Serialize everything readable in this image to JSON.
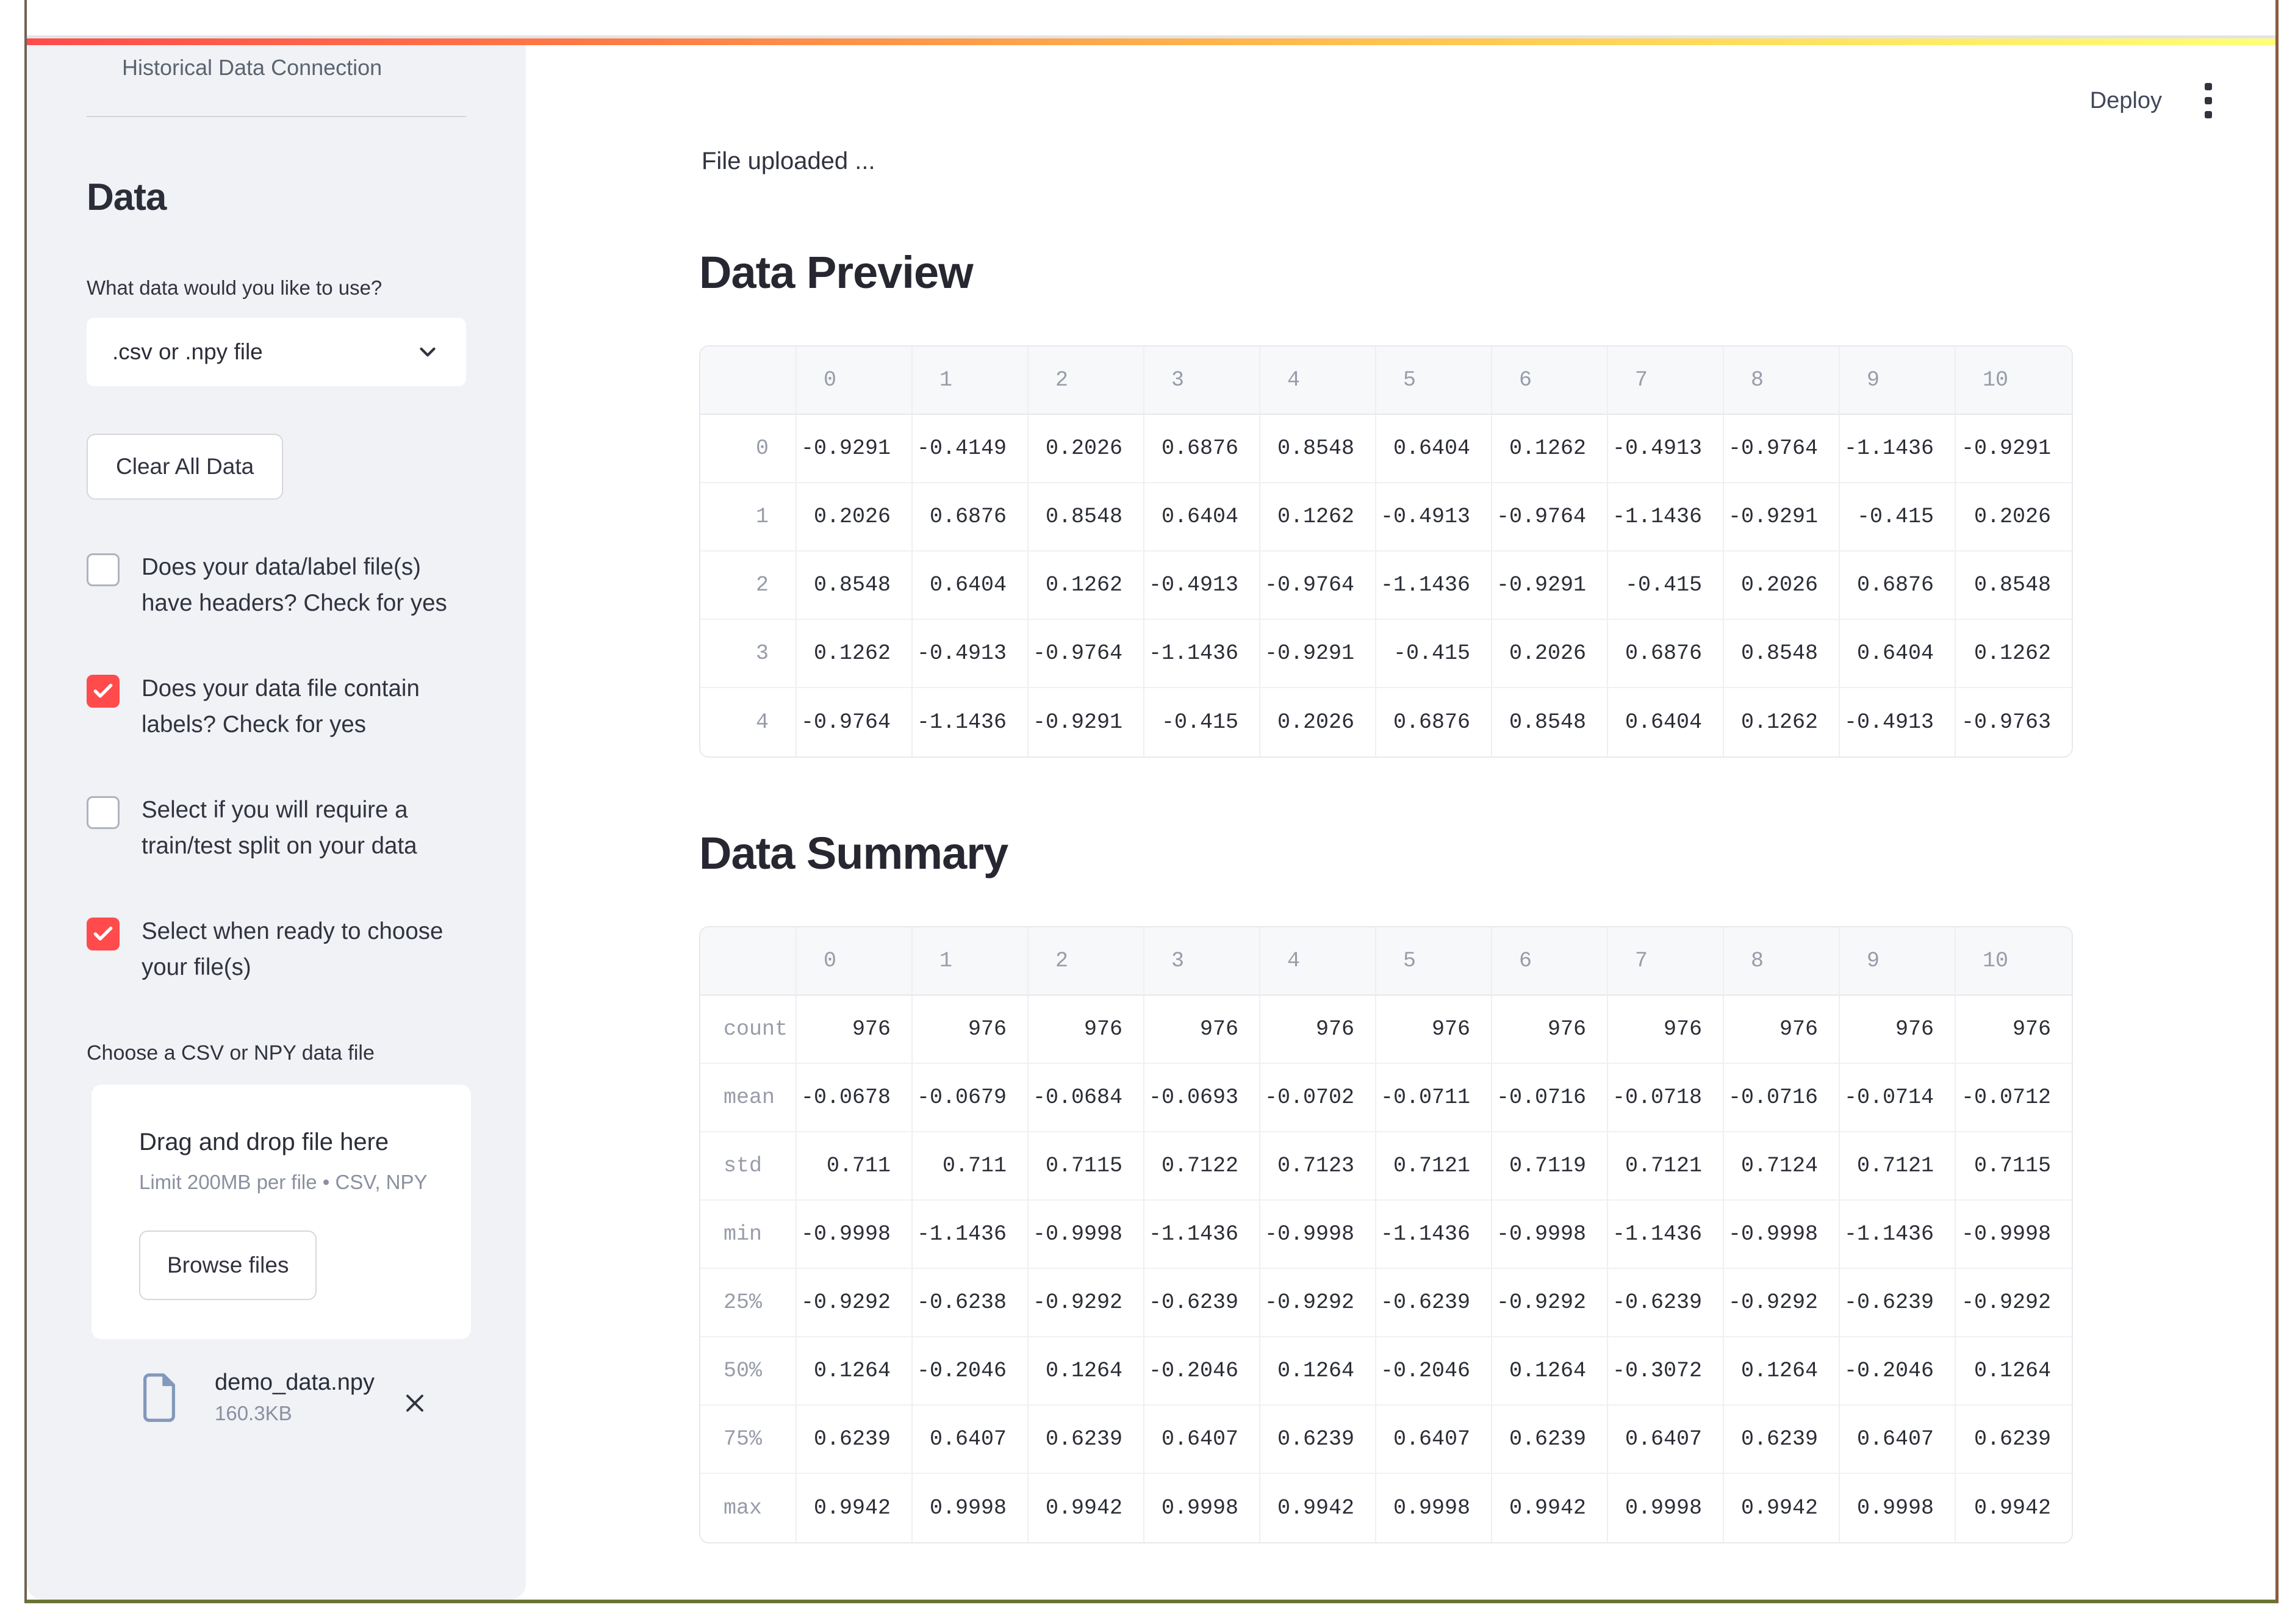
{
  "colors": {
    "accent": "#ff4b4b",
    "decoration_gradient": [
      "#ff4b4b",
      "#ffb84d",
      "#ffff78"
    ],
    "sidebar_bg": "#f0f2f6",
    "file_icon": "#8398ba"
  },
  "header": {
    "deploy_label": "Deploy",
    "menu_icon": "kebab-vertical-icon"
  },
  "sidebar": {
    "app_title": "Historical Data Connection",
    "section_title": "Data",
    "select_label": "What data would you like to use?",
    "select_value": ".csv or .npy file",
    "clear_button": "Clear All Data",
    "checkboxes": [
      {
        "label": "Does your data/label file(s) have headers? Check for yes",
        "checked": false
      },
      {
        "label": "Does your data file contain labels? Check for yes",
        "checked": true
      },
      {
        "label": "Select if you will require a train/test split on your data",
        "checked": false
      },
      {
        "label": "Select when ready to choose your file(s)",
        "checked": true
      }
    ],
    "uploader": {
      "label": "Choose a CSV or NPY data file",
      "dropzone_title": "Drag and drop file here",
      "dropzone_hint": "Limit 200MB per file • CSV, NPY",
      "browse_button": "Browse files",
      "file": {
        "name": "demo_data.npy",
        "size": "160.3KB"
      }
    }
  },
  "main": {
    "status_text": "File uploaded ...",
    "preview_title": "Data Preview",
    "summary_title": "Data Summary"
  },
  "tables": {
    "preview": {
      "columns": [
        "0",
        "1",
        "2",
        "3",
        "4",
        "5",
        "6",
        "7",
        "8",
        "9",
        "10"
      ],
      "index": [
        "0",
        "1",
        "2",
        "3",
        "4"
      ],
      "index_align": "right",
      "rows": [
        [
          "-0.9291",
          "-0.4149",
          "0.2026",
          "0.6876",
          "0.8548",
          "0.6404",
          "0.1262",
          "-0.4913",
          "-0.9764",
          "-1.1436",
          "-0.9291"
        ],
        [
          "0.2026",
          "0.6876",
          "0.8548",
          "0.6404",
          "0.1262",
          "-0.4913",
          "-0.9764",
          "-1.1436",
          "-0.9291",
          "-0.415",
          "0.2026"
        ],
        [
          "0.8548",
          "0.6404",
          "0.1262",
          "-0.4913",
          "-0.9764",
          "-1.1436",
          "-0.9291",
          "-0.415",
          "0.2026",
          "0.6876",
          "0.8548"
        ],
        [
          "0.1262",
          "-0.4913",
          "-0.9764",
          "-1.1436",
          "-0.9291",
          "-0.415",
          "0.2026",
          "0.6876",
          "0.8548",
          "0.6404",
          "0.1262"
        ],
        [
          "-0.9764",
          "-1.1436",
          "-0.9291",
          "-0.415",
          "0.2026",
          "0.6876",
          "0.8548",
          "0.6404",
          "0.1262",
          "-0.4913",
          "-0.9763"
        ]
      ]
    },
    "summary": {
      "columns": [
        "0",
        "1",
        "2",
        "3",
        "4",
        "5",
        "6",
        "7",
        "8",
        "9",
        "10"
      ],
      "index": [
        "count",
        "mean",
        "std",
        "min",
        "25%",
        "50%",
        "75%",
        "max"
      ],
      "index_align": "left",
      "rows": [
        [
          "976",
          "976",
          "976",
          "976",
          "976",
          "976",
          "976",
          "976",
          "976",
          "976",
          "976"
        ],
        [
          "-0.0678",
          "-0.0679",
          "-0.0684",
          "-0.0693",
          "-0.0702",
          "-0.0711",
          "-0.0716",
          "-0.0718",
          "-0.0716",
          "-0.0714",
          "-0.0712"
        ],
        [
          "0.711",
          "0.711",
          "0.7115",
          "0.7122",
          "0.7123",
          "0.7121",
          "0.7119",
          "0.7121",
          "0.7124",
          "0.7121",
          "0.7115"
        ],
        [
          "-0.9998",
          "-1.1436",
          "-0.9998",
          "-1.1436",
          "-0.9998",
          "-1.1436",
          "-0.9998",
          "-1.1436",
          "-0.9998",
          "-1.1436",
          "-0.9998"
        ],
        [
          "-0.9292",
          "-0.6238",
          "-0.9292",
          "-0.6239",
          "-0.9292",
          "-0.6239",
          "-0.9292",
          "-0.6239",
          "-0.9292",
          "-0.6239",
          "-0.9292"
        ],
        [
          "0.1264",
          "-0.2046",
          "0.1264",
          "-0.2046",
          "0.1264",
          "-0.2046",
          "0.1264",
          "-0.3072",
          "0.1264",
          "-0.2046",
          "0.1264"
        ],
        [
          "0.6239",
          "0.6407",
          "0.6239",
          "0.6407",
          "0.6239",
          "0.6407",
          "0.6239",
          "0.6407",
          "0.6239",
          "0.6407",
          "0.6239"
        ],
        [
          "0.9942",
          "0.9998",
          "0.9942",
          "0.9998",
          "0.9942",
          "0.9998",
          "0.9942",
          "0.9998",
          "0.9942",
          "0.9998",
          "0.9942"
        ]
      ]
    }
  }
}
